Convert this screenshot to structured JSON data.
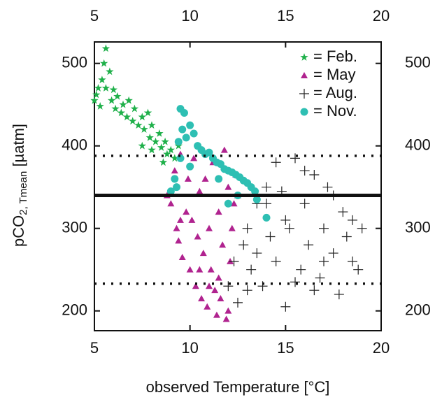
{
  "chart_data": {
    "type": "scatter",
    "xlabel": "observed Temperature [°C]",
    "ylabel": [
      "pCO",
      "2, Tmean",
      " [µatm]"
    ],
    "xlim": [
      5,
      20
    ],
    "ylim": [
      176,
      526
    ],
    "xticks": [
      5,
      10,
      15,
      20
    ],
    "yticks": [
      200,
      300,
      400,
      500
    ],
    "hlines": [
      {
        "value": 340,
        "style": "solid"
      },
      {
        "value": 388,
        "style": "dotted"
      },
      {
        "value": 233,
        "style": "dotted"
      }
    ],
    "legend": "upper right",
    "series": [
      {
        "name": "= Feb.",
        "color": "#1fb04a",
        "marker": "star",
        "x": [
          5.0,
          5.1,
          5.2,
          5.3,
          5.4,
          5.5,
          5.6,
          5.6,
          5.8,
          5.9,
          6.0,
          6.1,
          6.2,
          6.4,
          6.5,
          6.7,
          6.8,
          7.0,
          7.1,
          7.3,
          7.5,
          7.6,
          7.8,
          7.9,
          8.0,
          8.2,
          8.4,
          8.5,
          8.7,
          8.8,
          9.0,
          9.2,
          8.0,
          7.5,
          9.4,
          8.6
        ],
        "values": [
          455,
          462,
          470,
          448,
          480,
          500,
          518,
          470,
          490,
          455,
          468,
          445,
          460,
          440,
          450,
          435,
          455,
          430,
          445,
          425,
          435,
          420,
          440,
          410,
          425,
          405,
          415,
          398,
          405,
          390,
          395,
          385,
          395,
          400,
          400,
          380
        ]
      },
      {
        "name": "= May",
        "color": "#b0238f",
        "marker": "triangle",
        "x": [
          8.8,
          9.0,
          9.2,
          9.3,
          9.4,
          9.5,
          9.6,
          9.8,
          9.9,
          10.0,
          10.1,
          10.2,
          10.3,
          10.4,
          10.5,
          10.6,
          10.7,
          10.8,
          10.9,
          11.0,
          11.1,
          11.2,
          11.3,
          11.4,
          11.5,
          11.6,
          11.7,
          11.8,
          11.9,
          12.0,
          12.1,
          12.2,
          12.3,
          12.4,
          12.5,
          11.0,
          10.5,
          12.0,
          9.5,
          11.5
        ],
        "values": [
          340,
          330,
          370,
          300,
          285,
          390,
          265,
          320,
          360,
          250,
          310,
          385,
          230,
          290,
          345,
          215,
          270,
          360,
          205,
          300,
          250,
          380,
          225,
          195,
          320,
          215,
          280,
          395,
          190,
          350,
          260,
          300,
          330,
          365,
          340,
          230,
          250,
          200,
          310,
          240
        ]
      },
      {
        "name": "= Aug.",
        "color": "#222222",
        "marker": "plus",
        "x": [
          12.0,
          12.3,
          12.5,
          12.8,
          13.0,
          13.2,
          13.5,
          13.8,
          14.0,
          14.2,
          14.5,
          14.8,
          15.0,
          15.2,
          15.5,
          15.8,
          16.0,
          16.2,
          16.5,
          16.8,
          17.0,
          17.2,
          17.5,
          17.8,
          18.0,
          18.2,
          18.5,
          18.8,
          19.0,
          13.0,
          14.5,
          15.5,
          16.5,
          17.5,
          18.5,
          13.5,
          15.0,
          16.0,
          17.0,
          14.0
        ],
        "values": [
          230,
          260,
          210,
          280,
          300,
          250,
          270,
          230,
          330,
          290,
          260,
          345,
          310,
          300,
          385,
          250,
          330,
          280,
          365,
          240,
          300,
          350,
          270,
          220,
          320,
          290,
          260,
          250,
          300,
          225,
          380,
          235,
          225,
          340,
          310,
          330,
          205,
          370,
          260,
          350
        ]
      },
      {
        "name": "= Nov.",
        "color": "#2ebfb3",
        "marker": "circle",
        "x": [
          9.0,
          9.2,
          9.4,
          9.5,
          9.6,
          9.7,
          9.8,
          10.0,
          10.2,
          10.4,
          10.6,
          10.8,
          11.0,
          11.2,
          11.4,
          11.6,
          11.8,
          12.0,
          12.2,
          12.4,
          12.6,
          12.8,
          13.0,
          13.2,
          13.4,
          12.0,
          12.5,
          13.5,
          14.0,
          9.5,
          9.3,
          10.0,
          11.5
        ],
        "values": [
          345,
          360,
          405,
          445,
          420,
          440,
          410,
          425,
          415,
          400,
          395,
          390,
          392,
          385,
          380,
          378,
          372,
          370,
          368,
          365,
          362,
          358,
          355,
          350,
          345,
          330,
          340,
          335,
          313,
          385,
          350,
          375,
          360
        ]
      }
    ]
  }
}
